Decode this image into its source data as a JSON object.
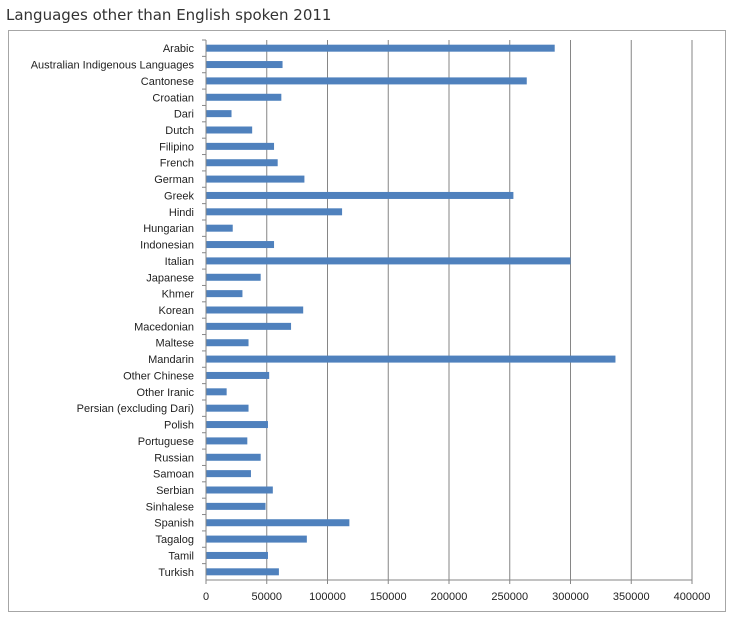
{
  "page": {
    "title": "Languages other than English spoken 2011"
  },
  "colors": {
    "bar": "#4f81bd",
    "grid": "#868686",
    "axis": "#868686",
    "text": "#222222"
  },
  "chart_data": {
    "type": "bar",
    "orientation": "horizontal",
    "title": "Languages other than English spoken 2011",
    "xlabel": "",
    "ylabel": "",
    "xlim": [
      0,
      400000
    ],
    "x_ticks": [
      0,
      50000,
      100000,
      150000,
      200000,
      250000,
      300000,
      350000,
      400000
    ],
    "x_tick_labels": [
      "0",
      "50000",
      "100000",
      "150000",
      "200000",
      "250000",
      "300000",
      "350000",
      "400000"
    ],
    "grid": "vertical",
    "legend": "none",
    "categories": [
      "Arabic",
      "Australian Indigenous Languages",
      "Cantonese",
      "Croatian",
      "Dari",
      "Dutch",
      "Filipino",
      "French",
      "German",
      "Greek",
      "Hindi",
      "Hungarian",
      "Indonesian",
      "Italian",
      "Japanese",
      "Khmer",
      "Korean",
      "Macedonian",
      "Maltese",
      "Mandarin",
      "Other Chinese",
      "Other Iranic",
      "Persian (excluding Dari)",
      "Polish",
      "Portuguese",
      "Russian",
      "Samoan",
      "Serbian",
      "Sinhalese",
      "Spanish",
      "Tagalog",
      "Tamil",
      "Turkish"
    ],
    "values": [
      287000,
      63000,
      264000,
      62000,
      21000,
      38000,
      56000,
      59000,
      81000,
      253000,
      112000,
      22000,
      56000,
      300000,
      45000,
      30000,
      80000,
      70000,
      35000,
      337000,
      52000,
      17000,
      35000,
      51000,
      34000,
      45000,
      37000,
      55000,
      49000,
      118000,
      83000,
      51000,
      60000
    ]
  }
}
